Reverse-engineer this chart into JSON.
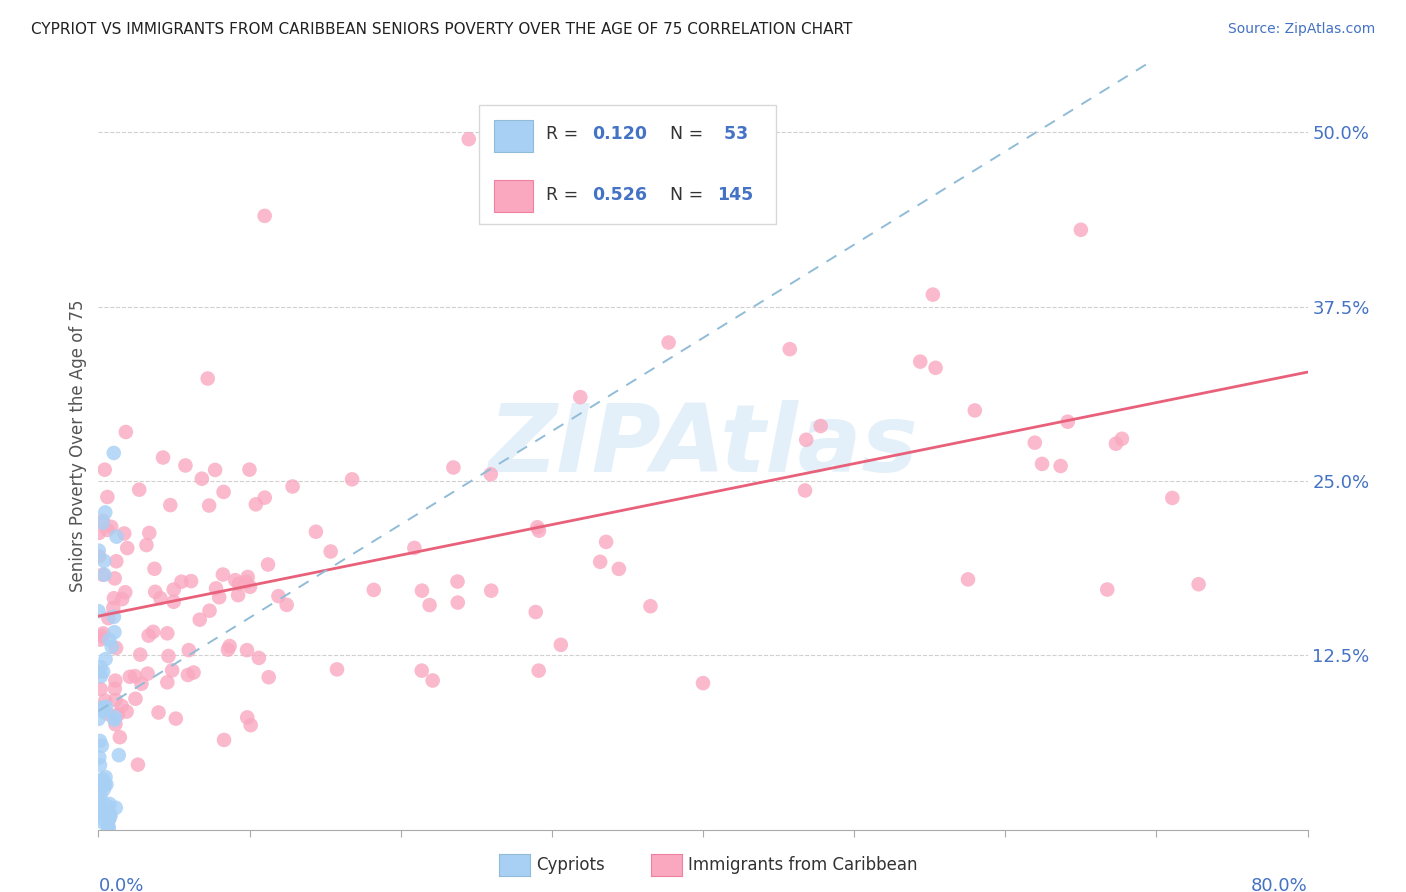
{
  "title": "CYPRIOT VS IMMIGRANTS FROM CARIBBEAN SENIORS POVERTY OVER THE AGE OF 75 CORRELATION CHART",
  "source": "Source: ZipAtlas.com",
  "ylabel": "Seniors Poverty Over the Age of 75",
  "legend_label1": "Cypriots",
  "legend_label2": "Immigrants from Caribbean",
  "R1": "0.120",
  "N1": "53",
  "R2": "0.526",
  "N2": "145",
  "color_cypriot": "#a8d0f5",
  "color_caribbean": "#f9a8c0",
  "color_cypriot_line": "#5090c0",
  "color_caribbean_line": "#e8607a",
  "color_blue": "#4472c4",
  "watermark": "ZIPAtlas",
  "xlim": [
    0,
    0.8
  ],
  "ylim": [
    0,
    0.55
  ],
  "yticks": [
    0.125,
    0.25,
    0.375,
    0.5
  ],
  "ytick_labels": [
    "12.5%",
    "25.0%",
    "37.5%",
    "50.0%"
  ],
  "xticks": [
    0.0,
    0.1,
    0.2,
    0.3,
    0.4,
    0.5,
    0.6,
    0.7,
    0.8
  ]
}
